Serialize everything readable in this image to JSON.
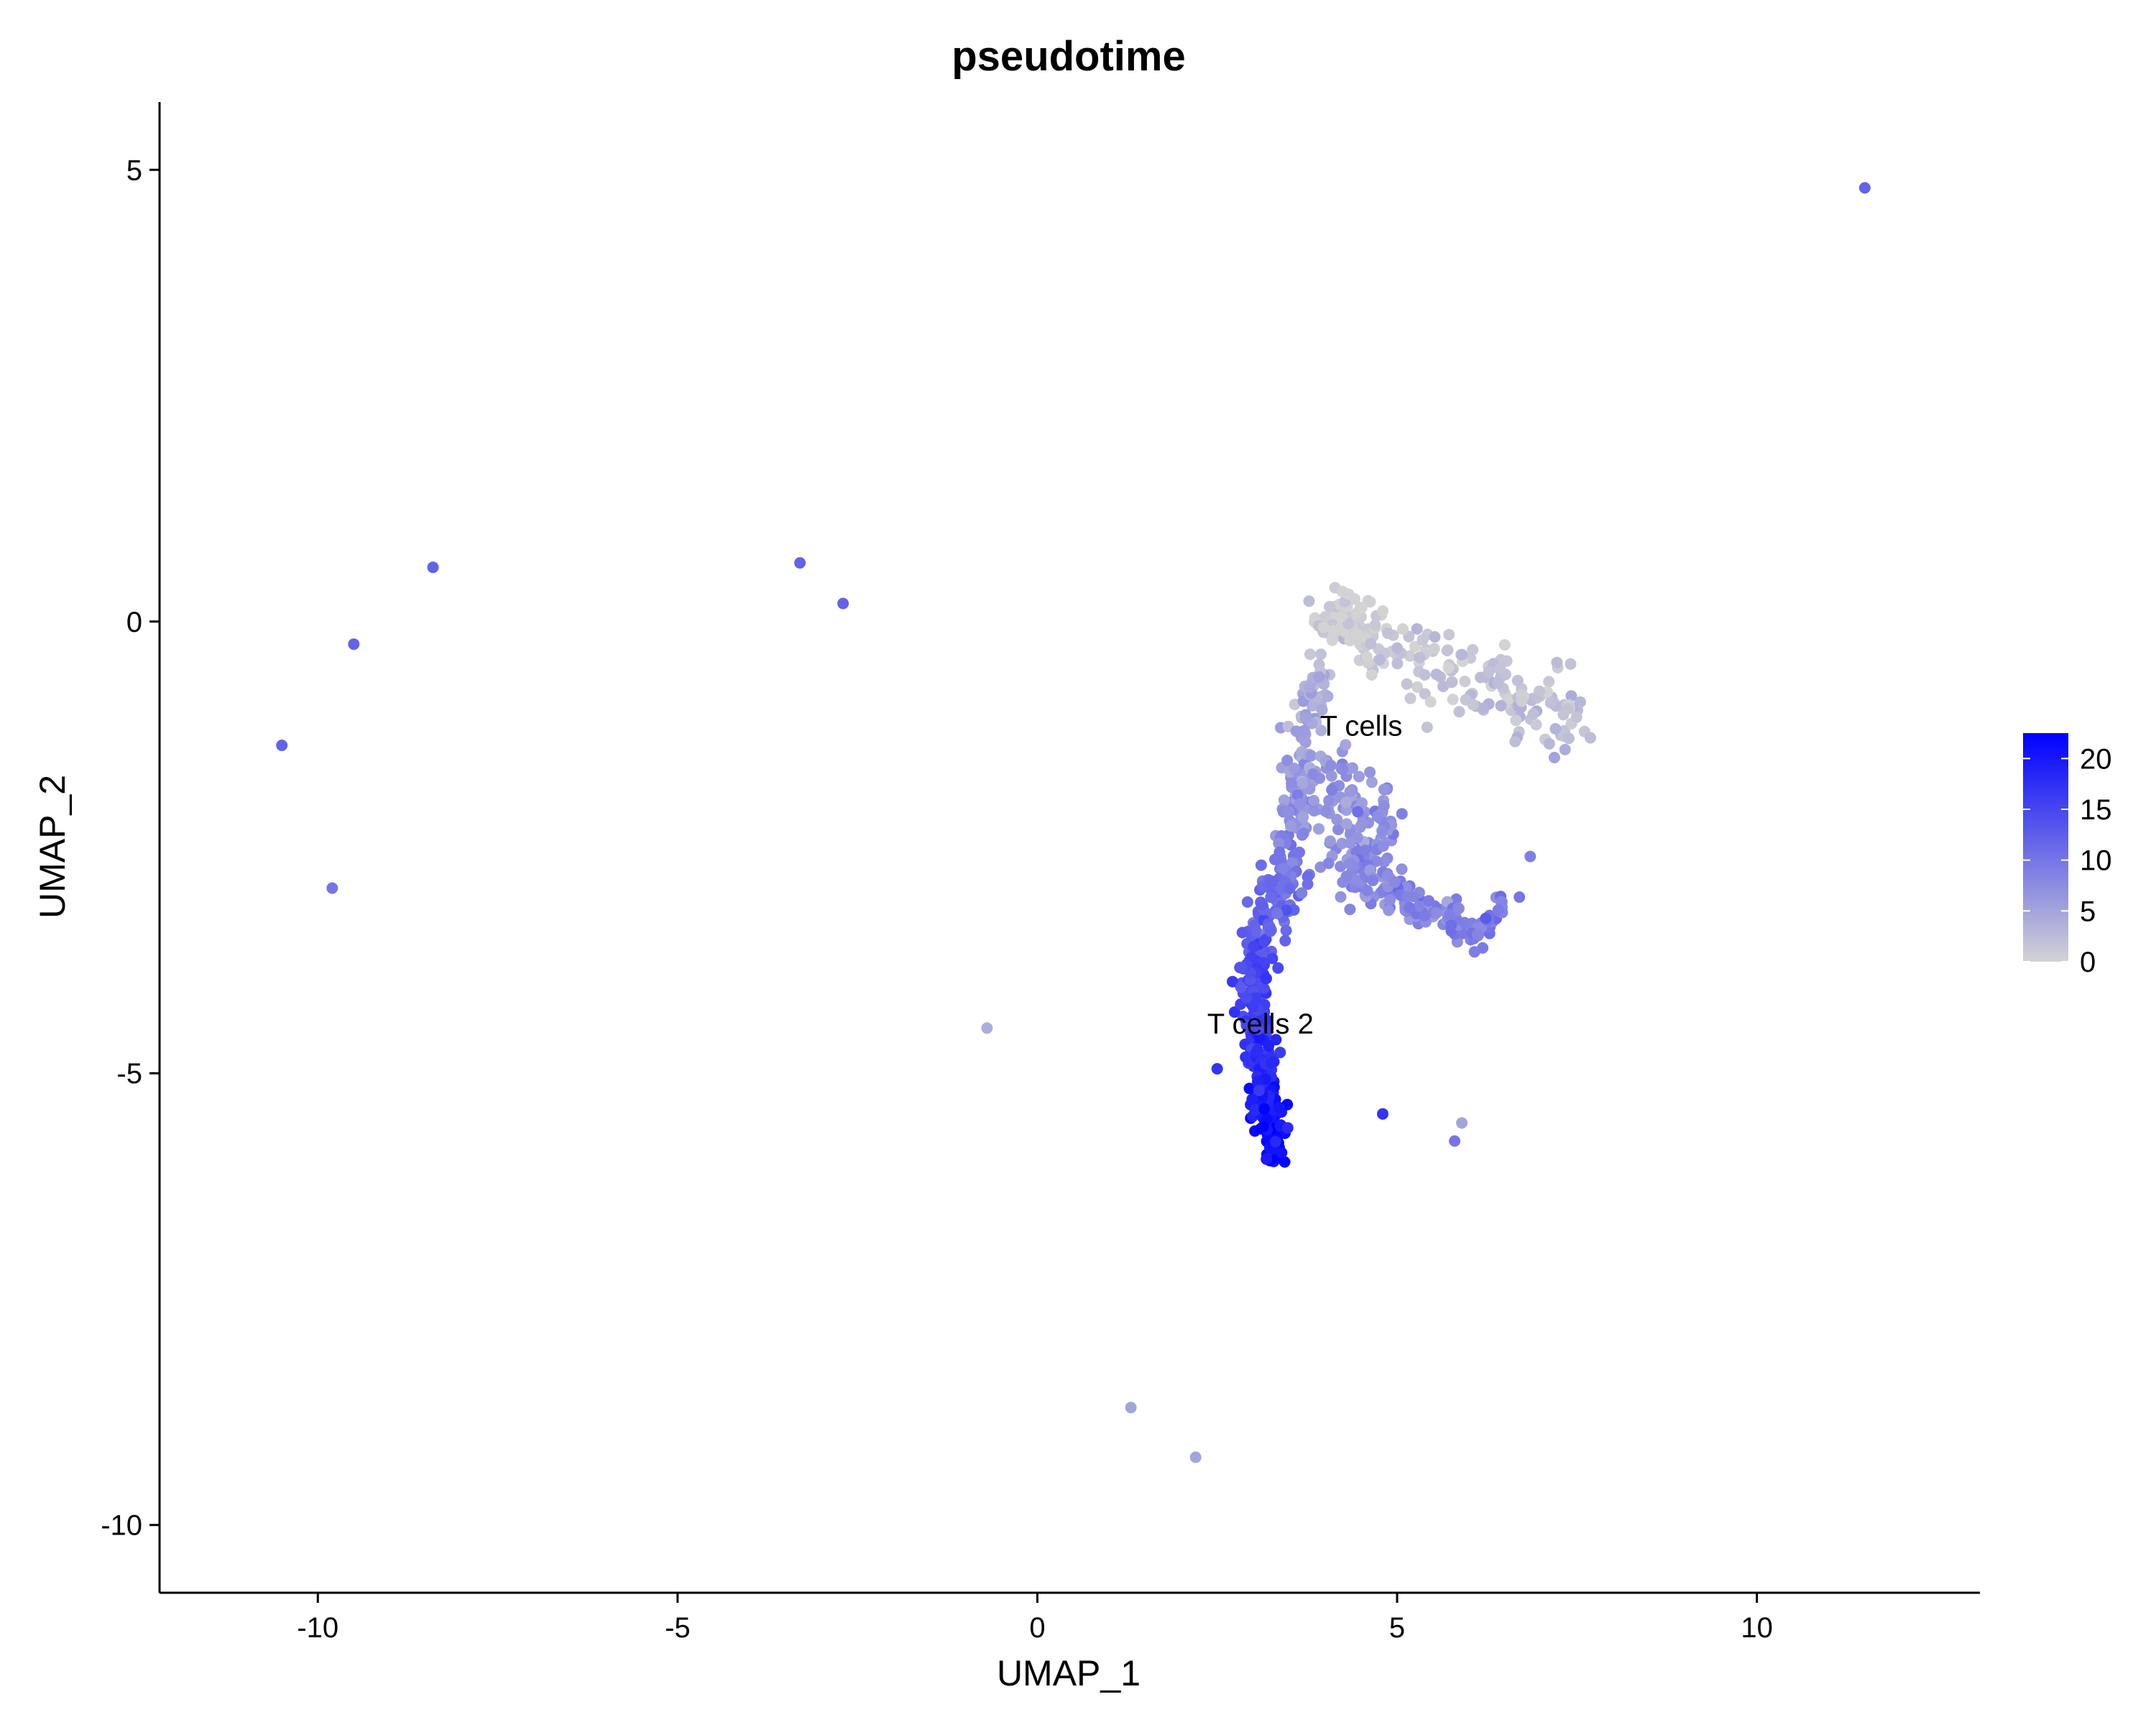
{
  "chart_data": {
    "type": "scatter",
    "title": "pseudotime",
    "xlabel": "UMAP_1",
    "ylabel": "UMAP_2",
    "xlim": [
      -12.2,
      13.1
    ],
    "ylim": [
      -10.75,
      5.75
    ],
    "xticks": [
      -10,
      -5,
      0,
      5,
      10
    ],
    "yticks": [
      -10,
      -5,
      0,
      5
    ],
    "xtick_labels": [
      "-10",
      "-5",
      "0",
      "5",
      "10"
    ],
    "ytick_labels": [
      "-10",
      "-5",
      "0",
      "5"
    ],
    "grid": false,
    "colorbar": {
      "name": "",
      "min": 0,
      "max": 22.5,
      "ticks": [
        0,
        5,
        10,
        15,
        20
      ],
      "tick_labels": [
        "0",
        "5",
        "10",
        "15",
        "20"
      ],
      "low_color": "#d3d3d3",
      "high_color": "#0000ff",
      "placement": "right"
    },
    "cluster_labels": [
      {
        "text": "T cells",
        "x": 4.5,
        "y": -1.15
      },
      {
        "text": "T cells 2",
        "x": 3.1,
        "y": -4.45
      }
    ],
    "outlier_points": [
      {
        "x": 11.5,
        "y": 4.8,
        "value": 12
      },
      {
        "x": -8.4,
        "y": 0.6,
        "value": 12
      },
      {
        "x": -9.5,
        "y": -0.25,
        "value": 12
      },
      {
        "x": -10.5,
        "y": -1.37,
        "value": 12
      },
      {
        "x": -9.8,
        "y": -2.95,
        "value": 10
      },
      {
        "x": -3.3,
        "y": 0.65,
        "value": 12
      },
      {
        "x": -2.7,
        "y": 0.2,
        "value": 12
      },
      {
        "x": -0.7,
        "y": -4.5,
        "value": 4
      },
      {
        "x": 1.3,
        "y": -8.7,
        "value": 5
      },
      {
        "x": 2.2,
        "y": -9.25,
        "value": 5
      },
      {
        "x": 4.8,
        "y": -5.45,
        "value": 17
      },
      {
        "x": 5.8,
        "y": -5.75,
        "value": 10
      },
      {
        "x": 5.9,
        "y": -5.55,
        "value": 5
      },
      {
        "x": 6.7,
        "y": -3.05,
        "value": 10
      },
      {
        "x": 6.85,
        "y": -2.6,
        "value": 9
      },
      {
        "x": 2.5,
        "y": -4.95,
        "value": 17
      }
    ],
    "cluster_segments": [
      {
        "name": "top-ridge",
        "from": [
          3.9,
          0.0
        ],
        "to": [
          4.5,
          0.0
        ],
        "n": 60,
        "spread": 0.15,
        "value_from": 0.5,
        "value_to": 0.5
      },
      {
        "name": "top-arm",
        "from": [
          4.3,
          -0.1
        ],
        "to": [
          7.6,
          -1.15
        ],
        "n": 170,
        "spread": 0.2,
        "value_from": 0.5,
        "value_to": 2.5
      },
      {
        "name": "left-upper-arm",
        "from": [
          3.9,
          -0.5
        ],
        "to": [
          3.6,
          -2.1
        ],
        "n": 90,
        "spread": 0.12,
        "value_from": 3,
        "value_to": 7
      },
      {
        "name": "left-mid-arm",
        "from": [
          3.6,
          -2.1
        ],
        "to": [
          3.35,
          -3.2
        ],
        "n": 70,
        "spread": 0.14,
        "value_from": 7,
        "value_to": 11
      },
      {
        "name": "center-blob",
        "from": [
          4.1,
          -1.8
        ],
        "to": [
          4.6,
          -2.6
        ],
        "n": 130,
        "spread": 0.3,
        "value_from": 6,
        "value_to": 8
      },
      {
        "name": "lower-arm",
        "from": [
          4.4,
          -2.8
        ],
        "to": [
          6.15,
          -3.45
        ],
        "n": 120,
        "spread": 0.1,
        "value_from": 8,
        "value_to": 9
      },
      {
        "name": "lower-arm-tip",
        "from": [
          6.1,
          -3.45
        ],
        "to": [
          6.5,
          -3.1
        ],
        "n": 25,
        "spread": 0.06,
        "value_from": 9,
        "value_to": 9
      },
      {
        "name": "stem-top",
        "from": [
          3.3,
          -2.9
        ],
        "to": [
          3.0,
          -3.8
        ],
        "n": 70,
        "spread": 0.12,
        "value_from": 11,
        "value_to": 14
      },
      {
        "name": "stem-mid",
        "from": [
          2.95,
          -3.8
        ],
        "to": [
          3.1,
          -5.0
        ],
        "n": 140,
        "spread": 0.1,
        "value_from": 14,
        "value_to": 18
      },
      {
        "name": "stem-bottom",
        "from": [
          3.1,
          -5.0
        ],
        "to": [
          3.3,
          -5.9
        ],
        "n": 120,
        "spread": 0.1,
        "value_from": 18,
        "value_to": 22
      }
    ]
  }
}
